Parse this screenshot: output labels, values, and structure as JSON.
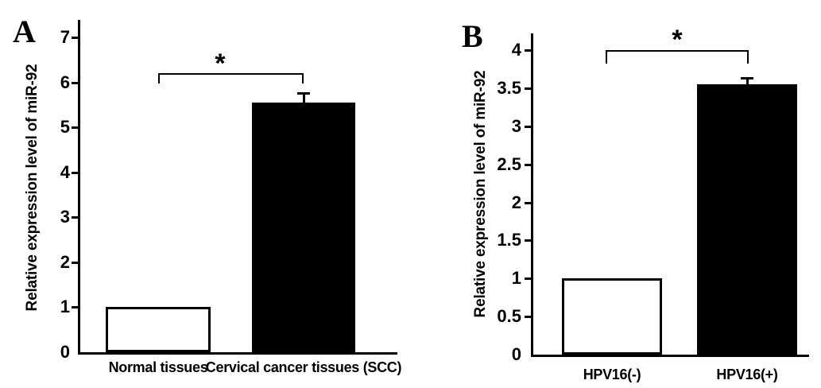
{
  "figure": {
    "background": "#ffffff",
    "ink": "#000000"
  },
  "chart_data": [
    {
      "type": "bar",
      "panel_label": "A",
      "title": "",
      "xlabel": "",
      "ylabel": "Relative expression level of miR-92",
      "categories": [
        "Normal tissues",
        "Cervical cancer tissues (SCC)"
      ],
      "values": [
        1.0,
        5.55
      ],
      "errors_plus": [
        0,
        0.21
      ],
      "bar_fills": [
        "#ffffff",
        "#000000"
      ],
      "bar_edge_color": "#000000",
      "ylim": [
        0,
        7
      ],
      "yticks": [
        0,
        1,
        2,
        3,
        4,
        5,
        6,
        7
      ],
      "ytick_labels": [
        "0",
        "1",
        "2",
        "3",
        "4",
        "5",
        "6",
        "7"
      ],
      "grid": false,
      "legend": "none",
      "significance": {
        "symbol": "*",
        "between": [
          0,
          1
        ]
      }
    },
    {
      "type": "bar",
      "panel_label": "B",
      "title": "",
      "xlabel": "",
      "ylabel": "Relative expression level of miR-92",
      "categories": [
        "HPV16(-)",
        "HPV16(+)"
      ],
      "values": [
        1.0,
        3.55
      ],
      "errors_plus": [
        0,
        0.08
      ],
      "bar_fills": [
        "#ffffff",
        "#000000"
      ],
      "bar_edge_color": "#000000",
      "ylim": [
        0,
        4
      ],
      "yticks": [
        0,
        0.5,
        1,
        1.5,
        2,
        2.5,
        3,
        3.5,
        4
      ],
      "ytick_labels": [
        "0",
        "0.5",
        "1",
        "1.5",
        "2",
        "2.5",
        "3",
        "3.5",
        "4"
      ],
      "grid": false,
      "legend": "none",
      "significance": {
        "symbol": "*",
        "between": [
          0,
          1
        ]
      }
    }
  ]
}
